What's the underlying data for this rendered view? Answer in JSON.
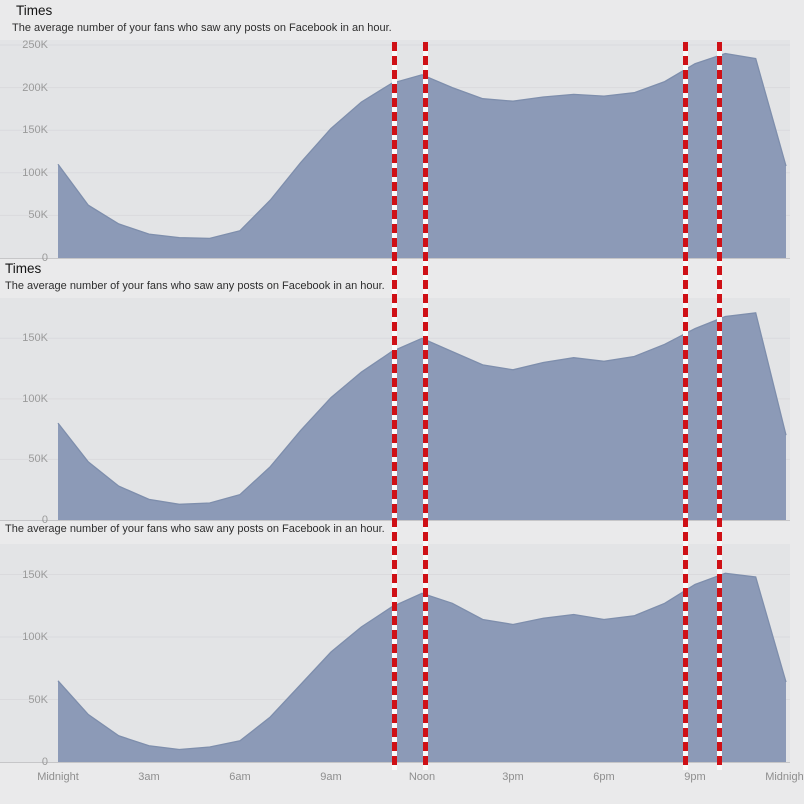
{
  "page": {
    "background": "#eaeaeb",
    "plot_background": "#e3e4e6"
  },
  "colors": {
    "area_fill": "#8c9ab7",
    "area_edge": "#7e8eac",
    "grid_line": "#dadadd",
    "baseline": "#c6c6c8",
    "marker_red": "#cf1016",
    "title_text": "#141414",
    "subtitle_text": "#2e2e2e",
    "axis_text": "#9a9a9a"
  },
  "markers": {
    "description": "vertical red dashed reference lines",
    "hours": [
      11.1,
      12.1,
      20.7,
      21.8
    ]
  },
  "chart_data": [
    {
      "type": "area",
      "title": "Times",
      "subtitle": "The average number of your fans who saw any posts on Facebook in an hour.",
      "x_hours": [
        0,
        1,
        2,
        3,
        4,
        5,
        6,
        7,
        8,
        9,
        10,
        11,
        12,
        13,
        14,
        15,
        16,
        17,
        18,
        19,
        20,
        21,
        22,
        23,
        24
      ],
      "x_tick_hours": [
        0,
        3,
        6,
        9,
        12,
        15,
        18,
        21,
        24
      ],
      "x_tick_labels": [
        "Midnight",
        "3am",
        "6am",
        "9am",
        "Noon",
        "3pm",
        "6pm",
        "9pm",
        "Midnight"
      ],
      "y_tick_values_k": [
        250,
        200,
        150,
        100,
        50,
        0
      ],
      "y_tick_labels": [
        "250K",
        "200K",
        "150K",
        "100K",
        "50K",
        "0"
      ],
      "ylim_k": [
        0,
        250
      ],
      "values_k": [
        110,
        62,
        40,
        28,
        24,
        23,
        32,
        68,
        112,
        152,
        183,
        205,
        215,
        200,
        187,
        184,
        189,
        192,
        190,
        194,
        207,
        228,
        240,
        234,
        108
      ],
      "legend": "none",
      "grid": "subtle horizontal"
    },
    {
      "type": "area",
      "title": "Times",
      "subtitle": "The average number of your fans who saw any posts on Facebook in an hour.",
      "x_hours": [
        0,
        1,
        2,
        3,
        4,
        5,
        6,
        7,
        8,
        9,
        10,
        11,
        12,
        13,
        14,
        15,
        16,
        17,
        18,
        19,
        20,
        21,
        22,
        23,
        24
      ],
      "x_tick_hours": [
        0,
        3,
        6,
        9,
        12,
        15,
        18,
        21,
        24
      ],
      "x_tick_labels": [
        "Midnight",
        "3am",
        "6am",
        "9am",
        "Noon",
        "3pm",
        "6pm",
        "9pm",
        "Midnight"
      ],
      "y_tick_values_k": [
        150,
        100,
        50,
        0
      ],
      "y_tick_labels": [
        "150K",
        "100K",
        "50K",
        "0"
      ],
      "ylim_k": [
        0,
        175
      ],
      "values_k": [
        80,
        48,
        28,
        17,
        13,
        14,
        21,
        44,
        74,
        101,
        122,
        139,
        150,
        139,
        128,
        124,
        130,
        134,
        131,
        135,
        145,
        158,
        168,
        171,
        70
      ],
      "legend": "none",
      "grid": "subtle horizontal"
    },
    {
      "type": "area",
      "title": "",
      "subtitle": "The average number of your fans who saw any posts on Facebook in an hour.",
      "x_hours": [
        0,
        1,
        2,
        3,
        4,
        5,
        6,
        7,
        8,
        9,
        10,
        11,
        12,
        13,
        14,
        15,
        16,
        17,
        18,
        19,
        20,
        21,
        22,
        23,
        24
      ],
      "x_tick_hours": [
        0,
        3,
        6,
        9,
        12,
        15,
        18,
        21,
        24
      ],
      "x_tick_labels": [
        "Midnight",
        "3am",
        "6am",
        "9am",
        "Noon",
        "3pm",
        "6pm",
        "9pm",
        "Midnight"
      ],
      "y_tick_values_k": [
        150,
        100,
        50,
        0
      ],
      "y_tick_labels": [
        "150K",
        "100K",
        "50K",
        "0"
      ],
      "ylim_k": [
        0,
        160
      ],
      "values_k": [
        65,
        38,
        21,
        13,
        10,
        12,
        17,
        36,
        62,
        88,
        108,
        124,
        135,
        127,
        114,
        110,
        115,
        118,
        114,
        117,
        127,
        142,
        151,
        148,
        64
      ],
      "legend": "none",
      "grid": "subtle horizontal"
    }
  ]
}
